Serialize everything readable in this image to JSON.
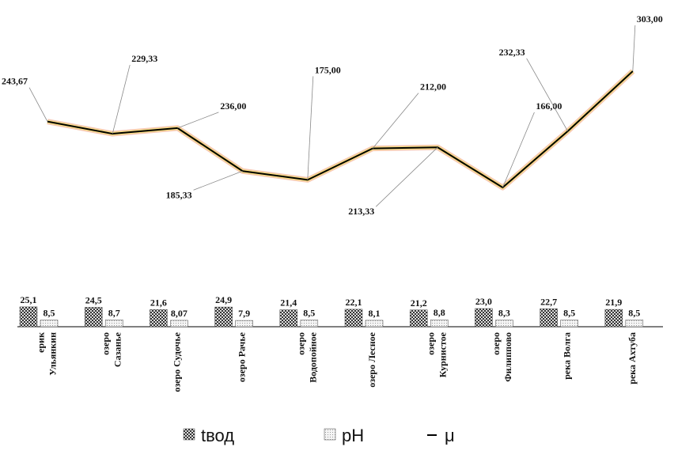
{
  "chart_data": {
    "type": "bar-line",
    "categories": [
      "ерик\nУльянкин",
      "озеро\nСазанье",
      "озеро Судочье",
      "озеро Рачье",
      "озеро\nВодопойное",
      "озеро Лесное",
      "озеро\nКурнистое",
      "озеро\nФилиппово",
      "река Волга",
      "река Ахтуба"
    ],
    "series": [
      {
        "name": "tвод",
        "type": "bar",
        "color": "#555555",
        "values": [
          25.1,
          24.5,
          21.6,
          24.9,
          21.4,
          22.1,
          21.2,
          23.0,
          22.7,
          21.9
        ],
        "value_labels": [
          "25,1",
          "24,5",
          "21,6",
          "24,9",
          "21,4",
          "22,1",
          "21,2",
          "23,0",
          "22,7",
          "21,9"
        ]
      },
      {
        "name": "pH",
        "type": "bar",
        "color": "#cccccc",
        "values": [
          8.5,
          8.7,
          8.07,
          7.9,
          8.5,
          8.1,
          8.8,
          8.3,
          8.5,
          8.5
        ],
        "value_labels": [
          "8,5",
          "8,7",
          "8,07",
          "7,9",
          "8,5",
          "8,1",
          "8,8",
          "8,3",
          "8,5",
          "8,5"
        ]
      },
      {
        "name": "μ",
        "type": "line",
        "color": "#000000",
        "values": [
          243.67,
          229.33,
          236.0,
          185.33,
          175.0,
          212.0,
          213.33,
          166.0,
          232.33,
          303.0
        ],
        "value_labels": [
          "243,67",
          "229,33",
          "236,00",
          "185,33",
          "175,00",
          "212,00",
          "213,33",
          "166,00",
          "232,33",
          "303,00"
        ]
      }
    ]
  }
}
